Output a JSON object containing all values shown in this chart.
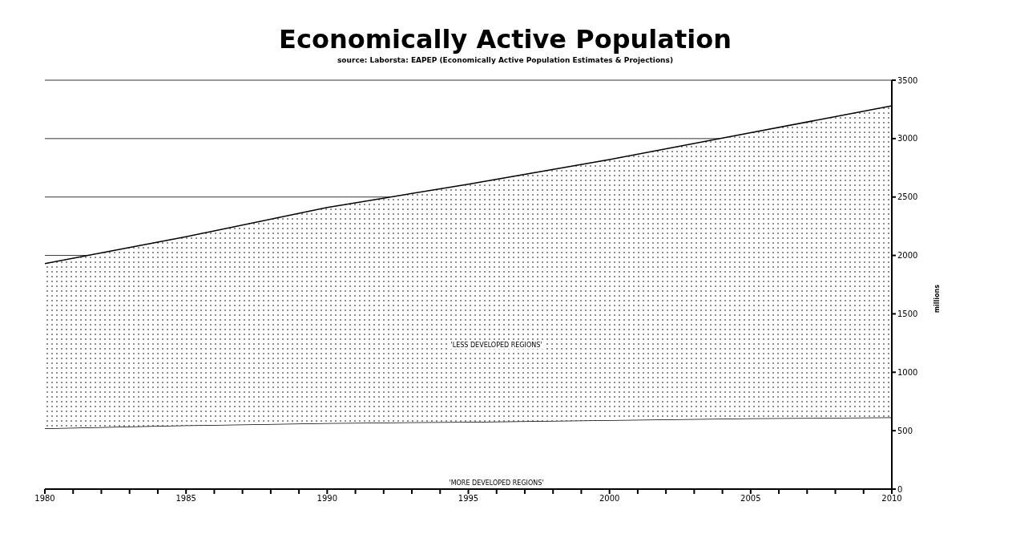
{
  "chart_data": {
    "type": "area",
    "title": "Economically Active Population",
    "subtitle": "source: Laborsta: EAPEP (Economically Active Population Estimates & Projections)",
    "ylabel": "millions",
    "stacked": true,
    "x": [
      1980,
      1985,
      1990,
      1995,
      2000,
      2005,
      2010
    ],
    "series": [
      {
        "name": "'MORE DEVELOPED REGIONS'",
        "color": "#ffffff",
        "values": [
          520,
          545,
          565,
          575,
          590,
          605,
          615
        ]
      },
      {
        "name": "'LESS DEVELOPED REGIONS'",
        "color": "#000000",
        "values": [
          1410,
          1615,
          1845,
          2035,
          2230,
          2445,
          2665
        ]
      }
    ],
    "xlim": [
      1980,
      2010
    ],
    "xticks": [
      1980,
      {
        "value": 1981,
        "label": null
      },
      {
        "value": 1982,
        "label": null
      },
      {
        "value": 1983,
        "label": null
      },
      {
        "value": 1984,
        "label": null
      },
      1985,
      {
        "value": 1986,
        "label": null
      },
      {
        "value": 1987,
        "label": null
      },
      {
        "value": 1988,
        "label": null
      },
      {
        "value": 1989,
        "label": null
      },
      1990,
      {
        "value": 1991,
        "label": null
      },
      {
        "value": 1992,
        "label": null
      },
      {
        "value": 1993,
        "label": null
      },
      {
        "value": 1994,
        "label": null
      },
      1995,
      {
        "value": 1996,
        "label": null
      },
      {
        "value": 1997,
        "label": null
      },
      {
        "value": 1998,
        "label": null
      },
      {
        "value": 1999,
        "label": null
      },
      2000,
      {
        "value": 2001,
        "label": null
      },
      {
        "value": 2002,
        "label": null
      },
      {
        "value": 2003,
        "label": null
      },
      {
        "value": 2004,
        "label": null
      },
      2005,
      {
        "value": 2006,
        "label": null
      },
      {
        "value": 2007,
        "label": null
      },
      {
        "value": 2008,
        "label": null
      },
      {
        "value": 2009,
        "label": null
      },
      2010
    ],
    "ylim": [
      0,
      3500
    ],
    "yticks": [
      0,
      500,
      1000,
      1500,
      2000,
      2500,
      3000,
      3500
    ],
    "grid": "y",
    "legend": false
  }
}
